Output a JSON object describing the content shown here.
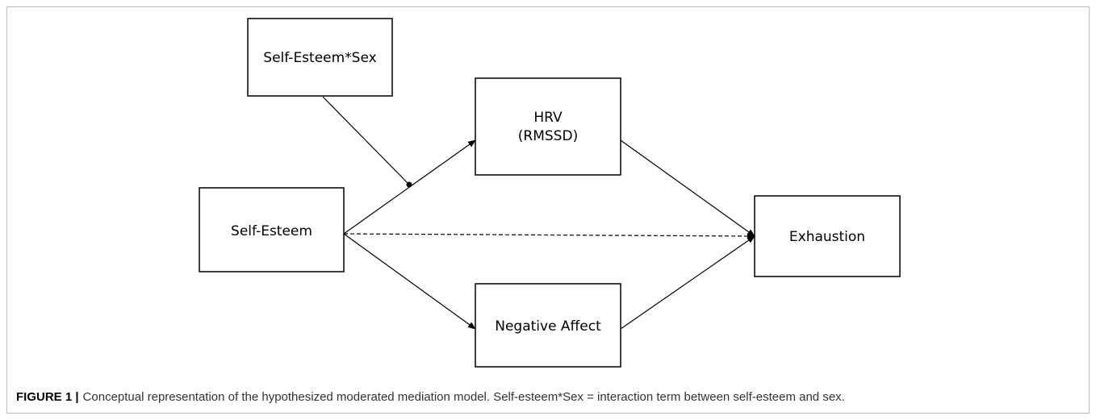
{
  "nodes": [
    {
      "label": "Self-Esteem*Sex"
    },
    {
      "lines": [
        "HRV",
        "(RMSSD)"
      ]
    },
    {
      "label": "Self-Esteem"
    },
    {
      "label": "Negative Affect"
    },
    {
      "label": "Exhaustion"
    }
  ],
  "caption": {
    "label": "FIGURE 1 |",
    "text": "Conceptual representation of the hypothesized moderated mediation model. Self-esteem*Sex = interaction term between self-esteem and sex."
  }
}
